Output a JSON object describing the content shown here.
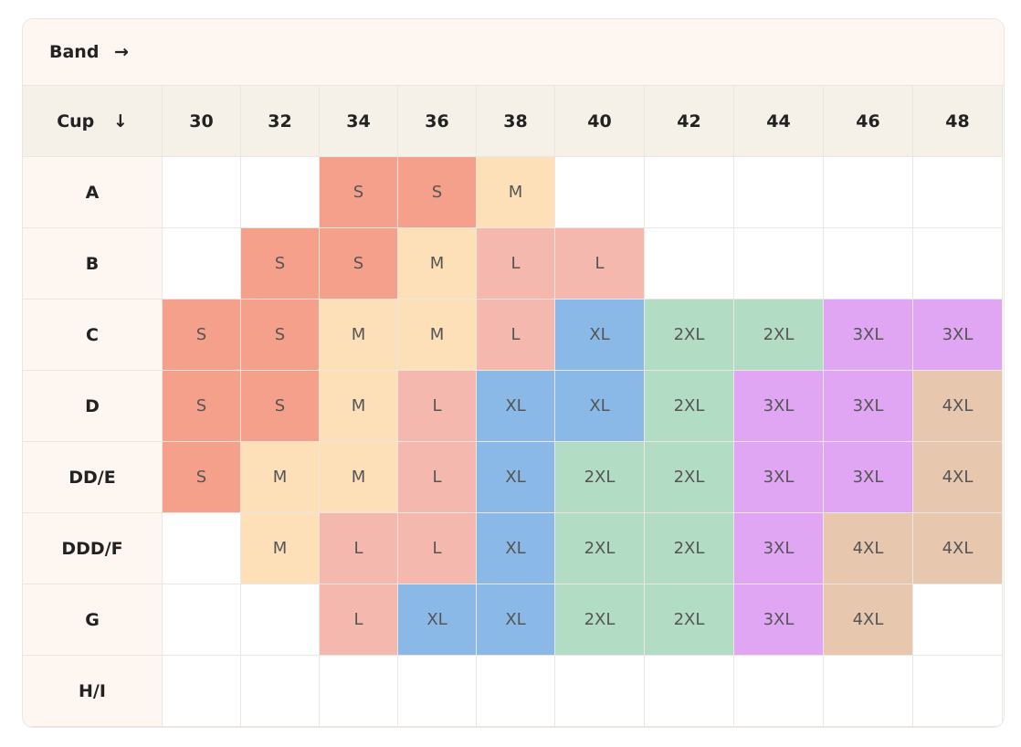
{
  "header": {
    "band_label": "Band →",
    "cup_label": "Cup ↓"
  },
  "table": {
    "columns": [
      30,
      32,
      34,
      36,
      38,
      40,
      42,
      44,
      46,
      48
    ],
    "rows": [
      {
        "label": "A",
        "cells": [
          null,
          null,
          "S",
          "S",
          "M",
          null,
          null,
          null,
          null,
          null
        ]
      },
      {
        "label": "B",
        "cells": [
          null,
          "S",
          "S",
          "M",
          "L",
          "L",
          null,
          null,
          null,
          null
        ]
      },
      {
        "label": "C",
        "cells": [
          "S",
          "S",
          "M",
          "M",
          "L",
          "XL",
          "2XL",
          "2XL",
          "3XL",
          "3XL"
        ]
      },
      {
        "label": "D",
        "cells": [
          "S",
          "S",
          "M",
          "L",
          "XL",
          "XL",
          "2XL",
          "3XL",
          "3XL",
          "4XL"
        ]
      },
      {
        "label": "DD/E",
        "cells": [
          "S",
          "M",
          "M",
          "L",
          "XL",
          "2XL",
          "2XL",
          "3XL",
          "3XL",
          "4XL"
        ]
      },
      {
        "label": "DDD/F",
        "cells": [
          null,
          "M",
          "L",
          "L",
          "XL",
          "2XL",
          "2XL",
          "3XL",
          "4XL",
          "4XL"
        ]
      },
      {
        "label": "G",
        "cells": [
          null,
          null,
          "L",
          "XL",
          "XL",
          "2XL",
          "2XL",
          "3XL",
          "4XL",
          null
        ]
      },
      {
        "label": "H/I",
        "cells": [
          null,
          null,
          null,
          null,
          null,
          null,
          null,
          null,
          null,
          null
        ]
      }
    ],
    "size_colors": {
      "S": "#f5a08a",
      "M": "#fde0b8",
      "L": "#f4b8ae",
      "XL": "#8ab9e8",
      "2XL": "#b3dcc5",
      "3XL": "#e0a6f4",
      "4XL": "#e7c7ae"
    }
  }
}
